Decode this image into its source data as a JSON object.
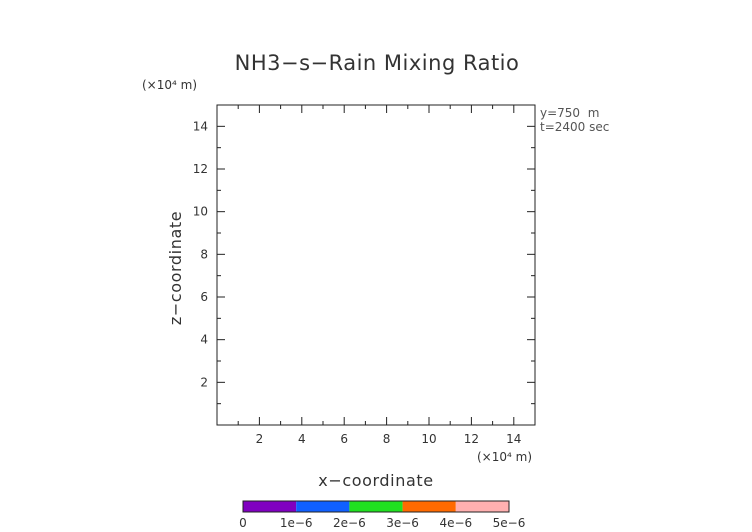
{
  "chart_data": {
    "type": "heatmap",
    "title": "NH3−s−Rain Mixing Ratio",
    "xlabel": "x−coordinate",
    "ylabel": "z−coordinate",
    "x_unit": "(×10⁴ m)",
    "y_unit": "(×10⁴ m)",
    "xlim": [
      0,
      15
    ],
    "ylim": [
      0,
      15
    ],
    "x_ticks": [
      2,
      4,
      6,
      8,
      10,
      12,
      14
    ],
    "y_ticks": [
      2,
      4,
      6,
      8,
      10,
      12,
      14
    ],
    "annotations": [
      "y=750  m",
      "t=2400 sec"
    ],
    "values": [],
    "colorbar": {
      "ticks": [
        "0",
        "1e−6",
        "2e−6",
        "3e−6",
        "4e−6",
        "5e−6"
      ],
      "range": [
        0,
        5e-06
      ],
      "colors": [
        "#8000c0",
        "#1060ff",
        "#20e020",
        "#ff6a00",
        "#ffb0b0"
      ]
    }
  }
}
